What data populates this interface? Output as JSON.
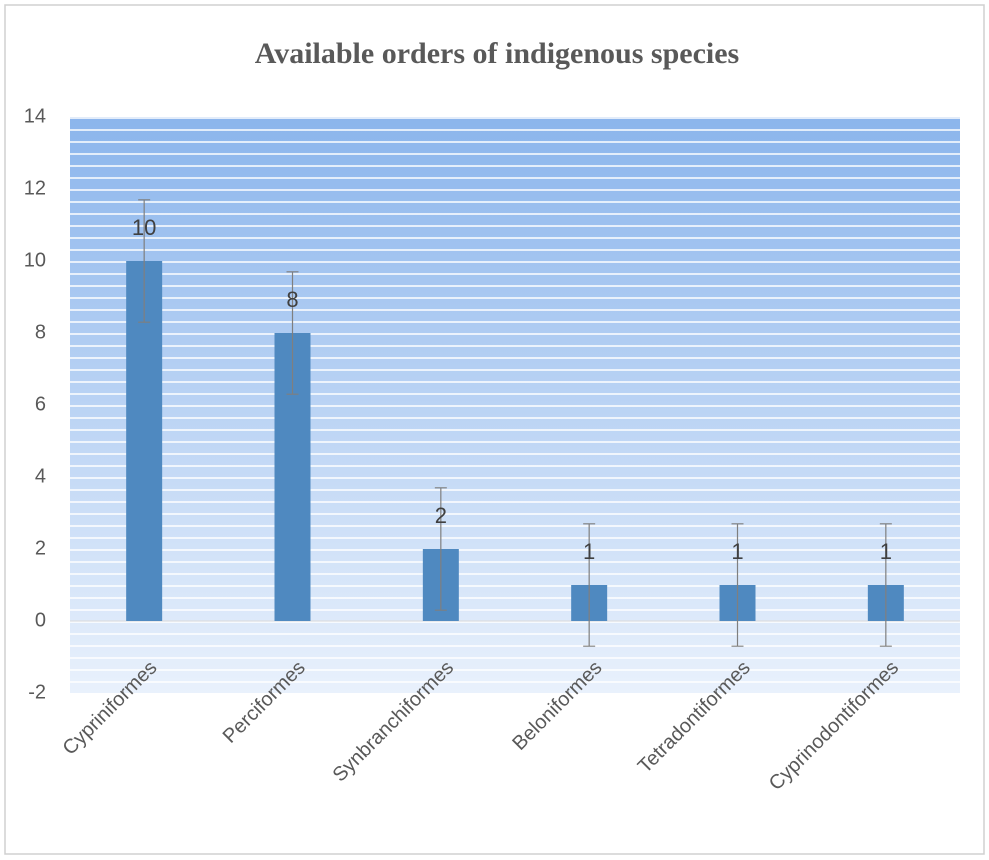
{
  "chart_data": {
    "type": "bar",
    "title": "Available orders of indigenous species",
    "categories": [
      "Cypriniformes",
      "Perciformes",
      "Synbranchiformes",
      "Beloniformes",
      "Tetradontiformes",
      "Cyprinodontiformes"
    ],
    "values": [
      10,
      8,
      2,
      1,
      1,
      1
    ],
    "errors": [
      1.7,
      1.7,
      1.7,
      1.7,
      1.7,
      1.7
    ],
    "color": "#4f89c0",
    "ylim": [
      -2,
      14
    ],
    "yticks": [
      -2,
      0,
      2,
      4,
      6,
      8,
      10,
      12,
      14
    ]
  }
}
